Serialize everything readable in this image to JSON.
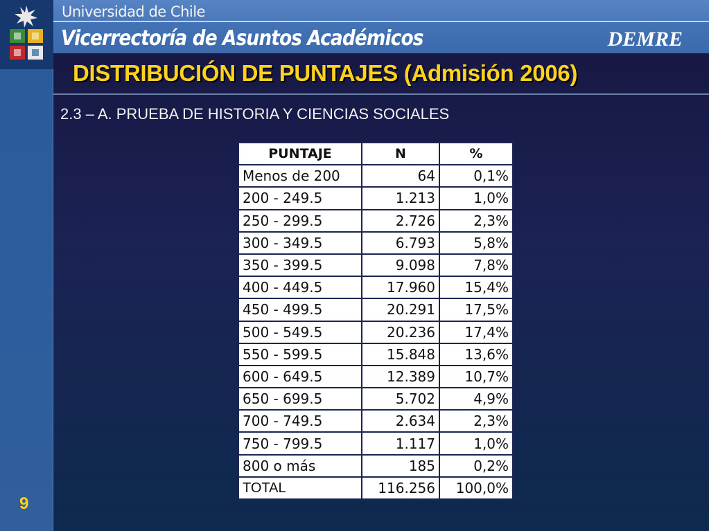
{
  "header": {
    "university": "Universidad de Chile",
    "vicerrectoria": "Vicerrectoría de Asuntos Académicos",
    "brand": "DEMRE"
  },
  "slide": {
    "title": "DISTRIBUCIÓN DE PUNTAJES (Admisión 2006)",
    "subtitle": "2.3 – A. PRUEBA DE HISTORIA Y CIENCIAS SOCIALES",
    "page_number": "9"
  },
  "colors": {
    "title": "#ffd21e",
    "background": "#1b2254",
    "sidebar": "#2d5d9c"
  },
  "table": {
    "headers": [
      "PUNTAJE",
      "N",
      "%"
    ],
    "rows": [
      [
        "Menos de 200",
        "64",
        "0,1%"
      ],
      [
        "200 - 249.5",
        "1.213",
        "1,0%"
      ],
      [
        "250 - 299.5",
        "2.726",
        "2,3%"
      ],
      [
        "300 - 349.5",
        "6.793",
        "5,8%"
      ],
      [
        "350 - 399.5",
        "9.098",
        "7,8%"
      ],
      [
        "400 - 449.5",
        "17.960",
        "15,4%"
      ],
      [
        "450 - 499.5",
        "20.291",
        "17,5%"
      ],
      [
        "500 - 549.5",
        "20.236",
        "17,4%"
      ],
      [
        "550 - 599.5",
        "15.848",
        "13,6%"
      ],
      [
        "600 - 649.5",
        "12.389",
        "10,7%"
      ],
      [
        "650 - 699.5",
        "5.702",
        "4,9%"
      ],
      [
        "700 - 749.5",
        "2.634",
        "2,3%"
      ],
      [
        "750 - 799.5",
        "1.117",
        "1,0%"
      ],
      [
        "800 o más",
        "185",
        "0,2%"
      ]
    ],
    "total": [
      "TOTAL",
      "116.256",
      "100,0%"
    ]
  }
}
